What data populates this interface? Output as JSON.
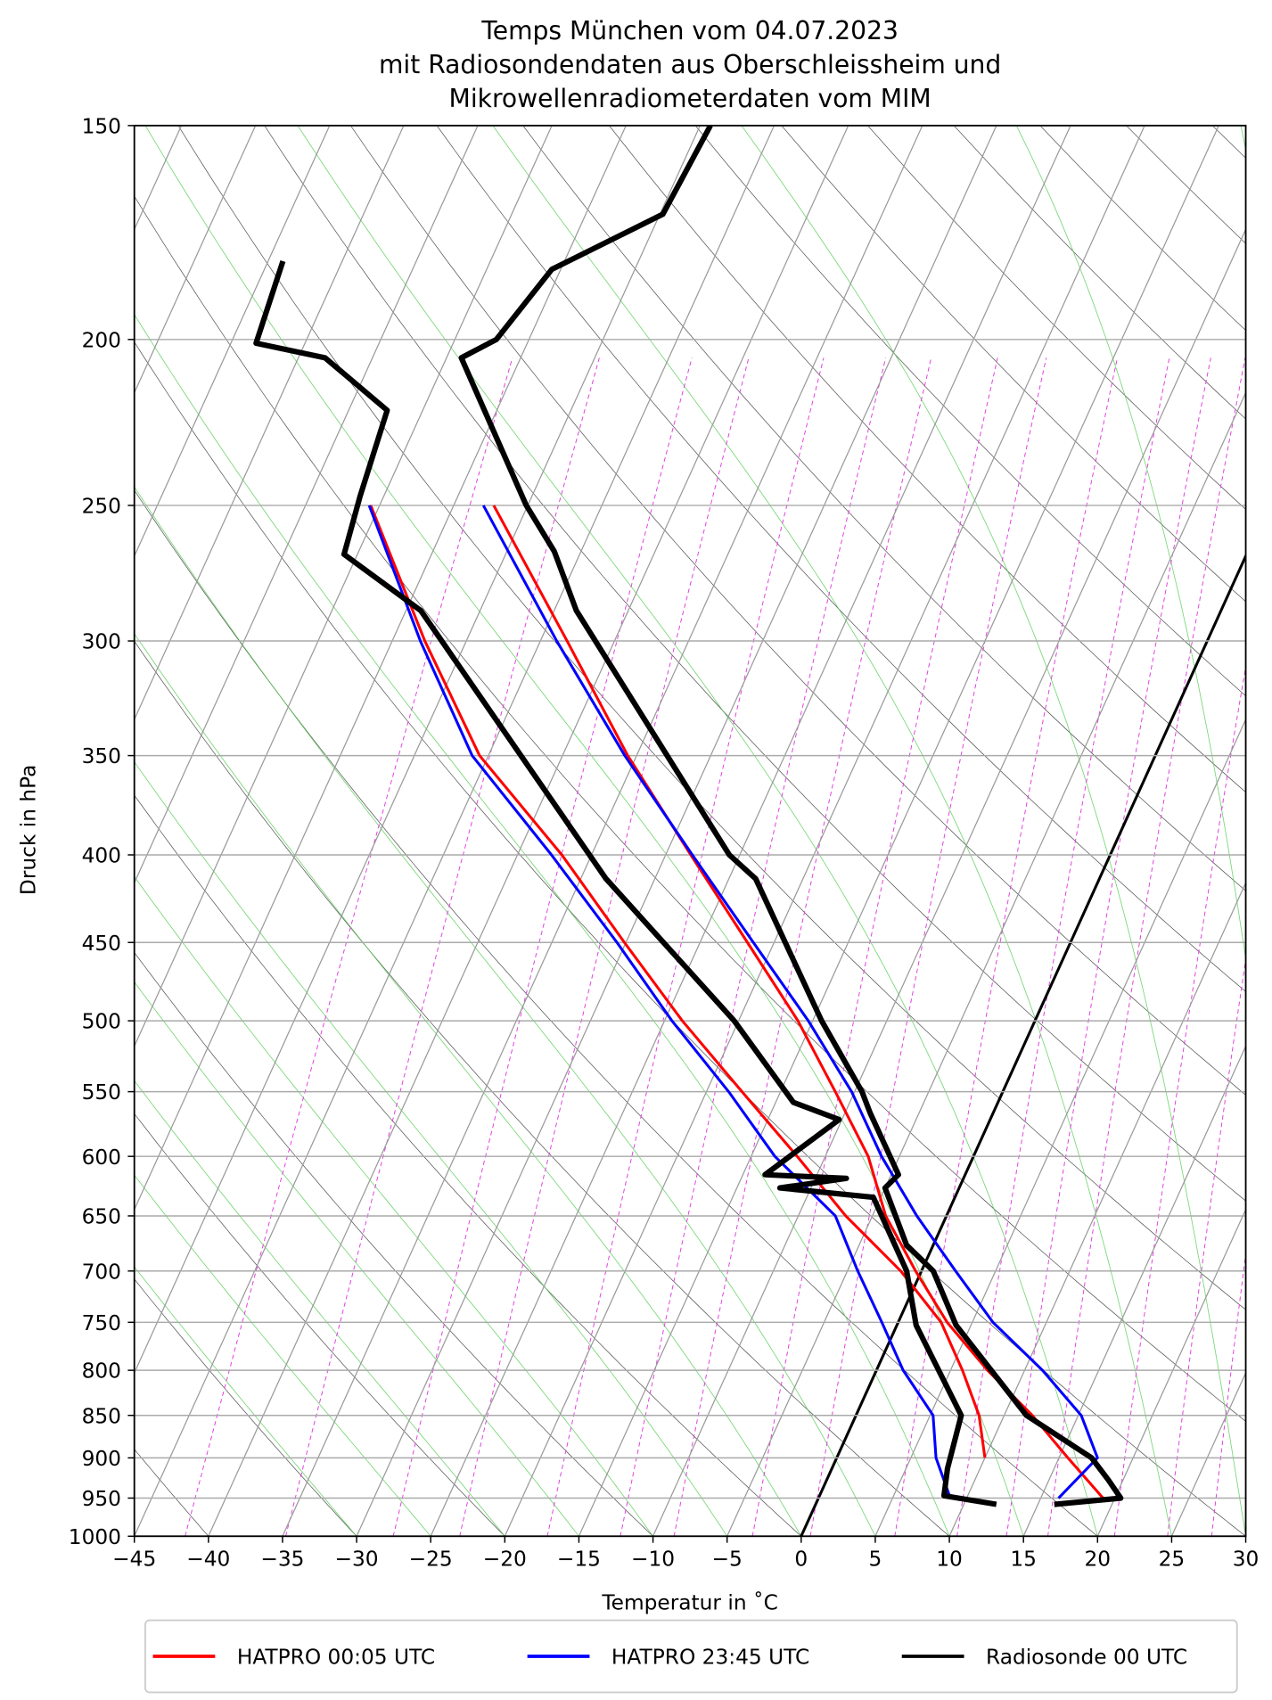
{
  "chart_data": {
    "type": "skewt",
    "title": [
      "Temps München vom 04.07.2023",
      "mit Radiosondendaten aus Oberschleissheim und",
      "Mikrowellenradiometerdaten vom MIM"
    ],
    "xlabel": "Temperatur in ˚C",
    "ylabel": "Druck in hPa",
    "xlim": [
      -45,
      30
    ],
    "ylim": [
      1000,
      150
    ],
    "log_y": true,
    "grid": true,
    "highlight_isotherm": 0,
    "legend": "lower center",
    "xticks": [
      {
        "value": -45,
        "label": "−45"
      },
      {
        "value": -40,
        "label": "−40"
      },
      {
        "value": -35,
        "label": "−35"
      },
      {
        "value": -30,
        "label": "−30"
      },
      {
        "value": -25,
        "label": "−25"
      },
      {
        "value": -20,
        "label": "−20"
      },
      {
        "value": -15,
        "label": "−15"
      },
      {
        "value": -10,
        "label": "−10"
      },
      {
        "value": -5,
        "label": "−5"
      },
      0,
      5,
      10,
      15,
      20,
      25,
      30
    ],
    "yticks": [
      150,
      200,
      250,
      300,
      350,
      400,
      450,
      500,
      550,
      600,
      650,
      700,
      750,
      800,
      850,
      900,
      950,
      1000
    ],
    "series": [
      {
        "name": "HATPRO 00:05 UTC",
        "color": "#ff0000",
        "pressure": [
          250,
          300,
          350,
          400,
          450,
          500,
          550,
          600,
          650,
          700,
          750,
          800,
          850,
          900,
          950
        ],
        "values": [
          -52.3,
          -43.2,
          -35.6,
          -28.3,
          -21.8,
          -16.0,
          -11.3,
          -7.1,
          -4.1,
          -0.4,
          3.3,
          7.5,
          11.9,
          15.6,
          19.2
        ],
        "dewpoint": [
          -60.6,
          -52.8,
          -45.6,
          -37.0,
          -30.1,
          -23.8,
          -17.6,
          -11.9,
          -6.8,
          -1.4,
          2.9,
          5.8,
          8.3,
          10.0,
          null
        ]
      },
      {
        "name": "HATPRO 23:45 UTC",
        "color": "#0000ff",
        "pressure": [
          250,
          300,
          350,
          400,
          450,
          500,
          550,
          600,
          650,
          700,
          750,
          800,
          850,
          900,
          950
        ],
        "values": [
          -53.0,
          -43.9,
          -35.8,
          -28.2,
          -21.4,
          -15.3,
          -10.2,
          -6.2,
          -2.0,
          2.3,
          6.4,
          11.2,
          15.2,
          17.6,
          16.2
        ],
        "dewpoint": [
          -60.7,
          -53.1,
          -46.1,
          -37.7,
          -30.6,
          -24.5,
          -18.5,
          -13.4,
          -7.5,
          -4.3,
          -1.1,
          1.8,
          5.2,
          6.7,
          8.9
        ]
      },
      {
        "name": "Radiosonde 00 UTC",
        "color": "#000000",
        "pressure": [
          150,
          169,
          182,
          200,
          205,
          250,
          266,
          288,
          400,
          413,
          500,
          550,
          566,
          615,
          626,
          676,
          700,
          753,
          850,
          900,
          927,
          950,
          958
        ],
        "values": [
          -49.3,
          -49.8,
          -55.6,
          -57.2,
          -59.0,
          -50.1,
          -46.8,
          -43.5,
          -25.7,
          -23.2,
          -14.4,
          -9.5,
          -8.3,
          -4.5,
          -5.0,
          -1.8,
          0.8,
          4.0,
          11.5,
          17.2,
          19.0,
          20.4,
          16.1
        ],
        "dewpoint_pressure": [
          180,
          201,
          205,
          220,
          247,
          267,
          288,
          413,
          500,
          558,
          571,
          615,
          618,
          626,
          634,
          700,
          753,
          850,
          913,
          947,
          958
        ],
        "dewpoint": [
          -74.0,
          -73.3,
          -68.2,
          -62.4,
          -61.6,
          -60.9,
          -54.0,
          -33.3,
          -20.3,
          -13.8,
          -10.2,
          -13.5,
          -7.9,
          -12.1,
          -5.5,
          -1.0,
          1.3,
          7.1,
          7.8,
          8.4,
          12.2
        ]
      }
    ]
  }
}
